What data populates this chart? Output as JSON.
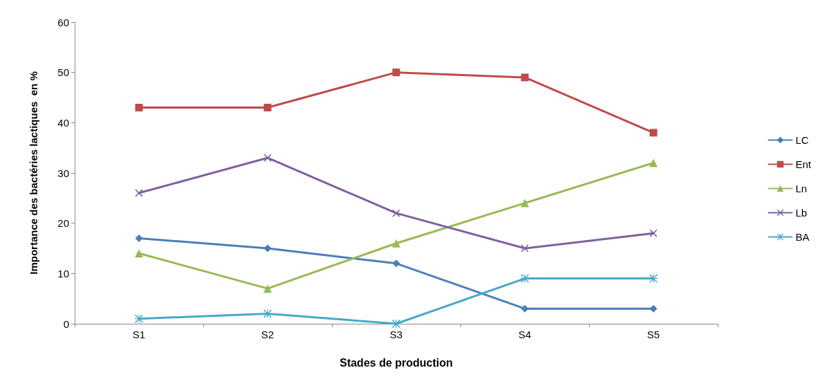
{
  "chart_data": {
    "type": "line",
    "xlabel": "Stades de production",
    "ylabel": "Importance des bactéries lactiques  en %",
    "categories": [
      "S1",
      "S2",
      "S3",
      "S4",
      "S5"
    ],
    "series": [
      {
        "name": "LC",
        "color": "#4a7ebb",
        "marker": "diamond",
        "values": [
          17,
          15,
          12,
          3,
          3
        ]
      },
      {
        "name": "Ent",
        "color": "#be4b48",
        "marker": "square",
        "values": [
          43,
          43,
          50,
          49,
          38
        ]
      },
      {
        "name": "Ln",
        "color": "#98b954",
        "marker": "triangle",
        "values": [
          14,
          7,
          16,
          24,
          32
        ]
      },
      {
        "name": "Lb",
        "color": "#7d60a0",
        "marker": "cross",
        "values": [
          26,
          33,
          22,
          15,
          18
        ]
      },
      {
        "name": "BA",
        "color": "#46aac5",
        "marker": "star",
        "values": [
          1,
          2,
          0,
          9,
          9
        ]
      }
    ],
    "ylim": [
      0,
      60
    ],
    "yticks": [
      0,
      10,
      20,
      30,
      40,
      50,
      60
    ],
    "grid": false,
    "legend": "right",
    "line_style": "solid"
  }
}
